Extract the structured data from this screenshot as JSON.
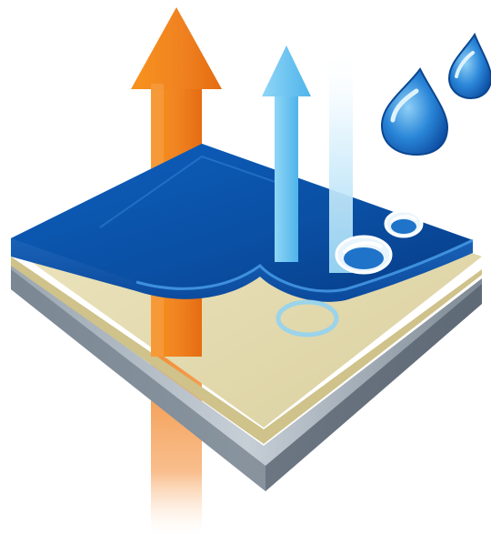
{
  "colors": {
    "background": "#ffffff",
    "membrane_top": "#0a4fa3",
    "membrane_highlight": "#2e7fd6",
    "liner": "#e8dfb6",
    "base_layer_light": "#b9c3cc",
    "base_layer_dark": "#6e7a86",
    "arrow_orange": "#f08220",
    "arrow_light_blue": "#6ec8f4",
    "water_drop": "#1c6fc9"
  },
  "icons": [
    "breathable-vapor-arrow-icon",
    "air-flow-arrow-icon",
    "light-beam-icon",
    "water-drop-icon",
    "water-bead-icon"
  ]
}
